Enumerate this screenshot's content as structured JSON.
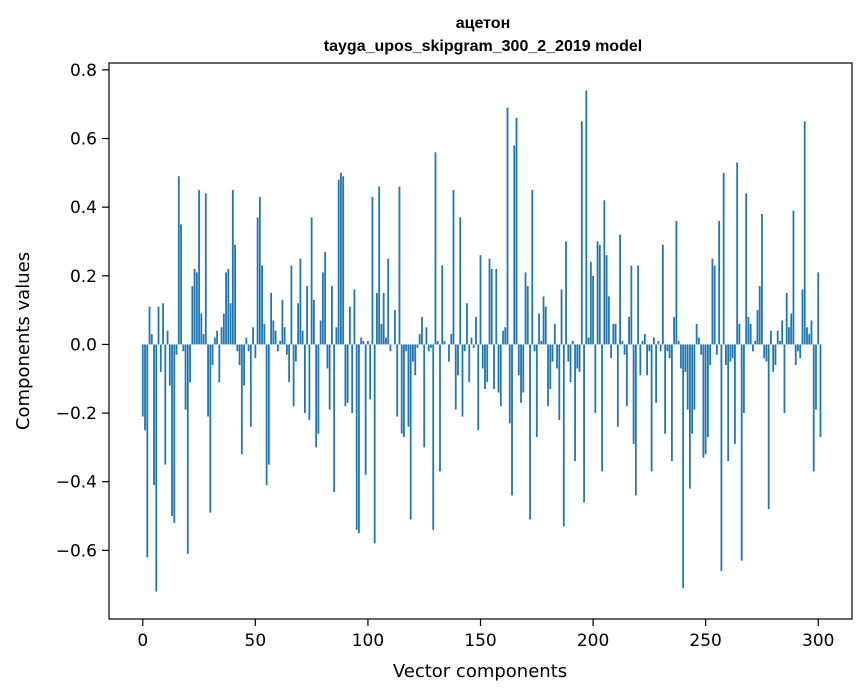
{
  "chart_data": {
    "type": "bar",
    "title": "ацетон",
    "subtitle": "tayga_upos_skipgram_300_2_2019 model",
    "xlabel": "Vector components",
    "ylabel": "Components values",
    "xlim": [
      -15,
      315
    ],
    "ylim": [
      -0.8,
      0.82
    ],
    "x_ticks": [
      0,
      50,
      100,
      150,
      200,
      250,
      300
    ],
    "x_tick_labels": [
      "0",
      "50",
      "100",
      "150",
      "200",
      "250",
      "300"
    ],
    "y_ticks": [
      -0.6,
      -0.4,
      -0.2,
      0.0,
      0.2,
      0.4,
      0.6,
      0.8
    ],
    "y_tick_labels": [
      "−0.6",
      "−0.4",
      "−0.2",
      "0.0",
      "0.2",
      "0.4",
      "0.6",
      "0.8"
    ],
    "grid": false,
    "bar_color": "#1f77b4",
    "values": [
      -0.21,
      -0.25,
      -0.62,
      0.11,
      0.03,
      -0.41,
      -0.72,
      0.11,
      -0.08,
      0.12,
      -0.35,
      0.04,
      -0.12,
      -0.5,
      -0.52,
      -0.03,
      0.49,
      0.35,
      -0.02,
      -0.19,
      -0.61,
      -0.11,
      0.17,
      0.22,
      0.21,
      0.45,
      0.09,
      0.03,
      0.44,
      -0.21,
      -0.49,
      -0.06,
      0.02,
      0.04,
      -0.11,
      0.05,
      0.09,
      0.21,
      0.22,
      0.12,
      0.45,
      0.29,
      -0.02,
      -0.06,
      -0.32,
      -0.12,
      0.02,
      -0.02,
      -0.24,
      0.05,
      -0.04,
      0.37,
      0.43,
      0.23,
      0.06,
      -0.41,
      -0.35,
      0.15,
      0.07,
      0.04,
      -0.02,
      0.01,
      0.13,
      0.05,
      -0.03,
      -0.11,
      0.23,
      -0.18,
      -0.05,
      0.12,
      0.25,
      0.04,
      -0.2,
      0.17,
      -0.22,
      0.37,
      0.13,
      -0.3,
      -0.26,
      0.07,
      0.21,
      0.27,
      -0.07,
      -0.19,
      0.17,
      -0.43,
      0.05,
      0.48,
      0.5,
      0.49,
      -0.18,
      -0.17,
      0.11,
      -0.2,
      0.16,
      -0.54,
      -0.55,
      0.02,
      0.01,
      -0.38,
      0.01,
      -0.16,
      0.43,
      -0.58,
      0.15,
      0.46,
      0.06,
      0.15,
      0.02,
      0.25,
      -0.02,
      0.0,
      0.1,
      -0.21,
      0.46,
      -0.26,
      -0.27,
      -0.02,
      -0.24,
      -0.51,
      -0.05,
      -0.09,
      -0.01,
      0.03,
      0.08,
      -0.3,
      0.05,
      -0.02,
      -0.01,
      -0.54,
      0.56,
      0.01,
      -0.37,
      0.23,
      0.01,
      0.0,
      -0.05,
      0.03,
      0.45,
      -0.19,
      -0.09,
      0.37,
      -0.21,
      -0.02,
      0.12,
      -0.11,
      0.02,
      -0.01,
      0.08,
      -0.25,
      0.26,
      -0.07,
      -0.13,
      -0.11,
      0.25,
      0.22,
      -0.13,
      0.22,
      -0.14,
      -0.18,
      0.04,
      0.05,
      0.69,
      -0.23,
      -0.44,
      0.58,
      0.66,
      -0.09,
      -0.17,
      -0.14,
      0.21,
      0.17,
      -0.51,
      0.45,
      -0.02,
      -0.27,
      0.09,
      0.01,
      0.14,
      0.11,
      -0.18,
      -0.13,
      -0.05,
      0.06,
      -0.07,
      -0.22,
      0.16,
      -0.53,
      0.3,
      -0.05,
      -0.11,
      0.01,
      -0.34,
      -0.07,
      -0.08,
      0.65,
      -0.46,
      0.74,
      0.02,
      0.24,
      0.2,
      -0.2,
      0.3,
      0.29,
      -0.37,
      0.42,
      0.26,
      0.14,
      -0.04,
      0.06,
      0.06,
      -0.24,
      0.32,
      0.01,
      -0.03,
      -0.18,
      0.08,
      0.23,
      -0.29,
      -0.44,
      0.23,
      -0.09,
      0.01,
      0.03,
      -0.09,
      -0.02,
      -0.37,
      0.02,
      -0.17,
      0.01,
      -0.02,
      0.29,
      -0.26,
      -0.02,
      -0.04,
      -0.34,
      0.08,
      0.36,
      0.01,
      -0.07,
      -0.71,
      -0.08,
      -0.19,
      -0.42,
      -0.26,
      -0.19,
      0.06,
      0.02,
      -0.03,
      -0.33,
      -0.32,
      -0.27,
      -0.06,
      0.25,
      0.23,
      -0.03,
      0.36,
      -0.66,
      0.5,
      -0.06,
      -0.34,
      -0.05,
      -0.04,
      -0.29,
      0.53,
      0.06,
      -0.63,
      -0.2,
      0.44,
      0.08,
      0.06,
      -0.02,
      0.01,
      0.1,
      0.17,
      0.38,
      -0.04,
      -0.05,
      -0.48,
      0.04,
      -0.08,
      -0.06,
      0.04,
      0.01,
      0.07,
      -0.2,
      0.15,
      0.05,
      0.09,
      0.39,
      -0.06,
      -0.02,
      -0.04,
      0.16,
      0.65,
      0.05,
      0.03,
      0.07,
      -0.37,
      -0.19,
      0.21,
      -0.27
    ]
  }
}
